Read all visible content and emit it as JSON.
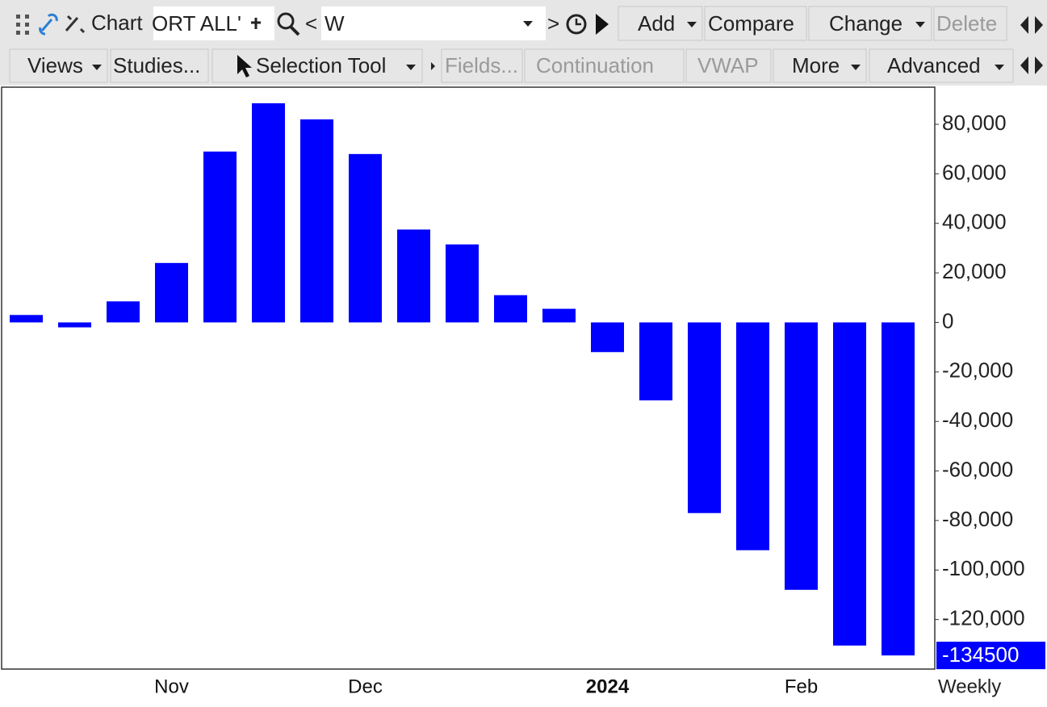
{
  "toolbar": {
    "row1": {
      "chart": "Chart",
      "symbol": "ORT ALL'",
      "prev": "<",
      "period_input": "W",
      "next": ">",
      "add": "Add",
      "compare": "Compare",
      "change": "Change",
      "delete": "Delete"
    },
    "row2": {
      "views": "Views",
      "studies": "Studies...",
      "selection_tool": "Selection Tool",
      "fields": "Fields...",
      "continuation": "Continuation",
      "vwap": "VWAP",
      "more": "More",
      "advanced": "Advanced"
    }
  },
  "chart_data": {
    "type": "bar",
    "period": "Weekly",
    "categories": [
      null,
      null,
      null,
      "Nov",
      null,
      null,
      null,
      "Dec",
      null,
      null,
      null,
      null,
      "2024",
      null,
      null,
      null,
      "Feb",
      null,
      null
    ],
    "values": [
      3000,
      -2000,
      8500,
      24000,
      69000,
      88500,
      82000,
      68000,
      37500,
      31500,
      11000,
      5500,
      -12000,
      -31500,
      -77000,
      -92000,
      -108000,
      -130500,
      -134500
    ],
    "value_labels": [
      null,
      null,
      null,
      null,
      null,
      null,
      null,
      null,
      null,
      null,
      null,
      null,
      null,
      null,
      null,
      null,
      null,
      null,
      "-134500"
    ],
    "color": "#0000ff",
    "ylim": [
      -140000,
      95000
    ],
    "yticks": [
      {
        "value": 80000,
        "label": "80,000"
      },
      {
        "value": 60000,
        "label": "60,000"
      },
      {
        "value": 40000,
        "label": "40,000"
      },
      {
        "value": 20000,
        "label": "20,000"
      },
      0,
      {
        "value": -20000,
        "label": "-20,000"
      },
      {
        "value": -40000,
        "label": "-40,000"
      },
      {
        "value": -60000,
        "label": "-60,000"
      },
      {
        "value": -80000,
        "label": "-80,000"
      },
      {
        "value": -100000,
        "label": "-100,000"
      },
      {
        "value": -120000,
        "label": "-120,000"
      }
    ],
    "grid": false
  }
}
